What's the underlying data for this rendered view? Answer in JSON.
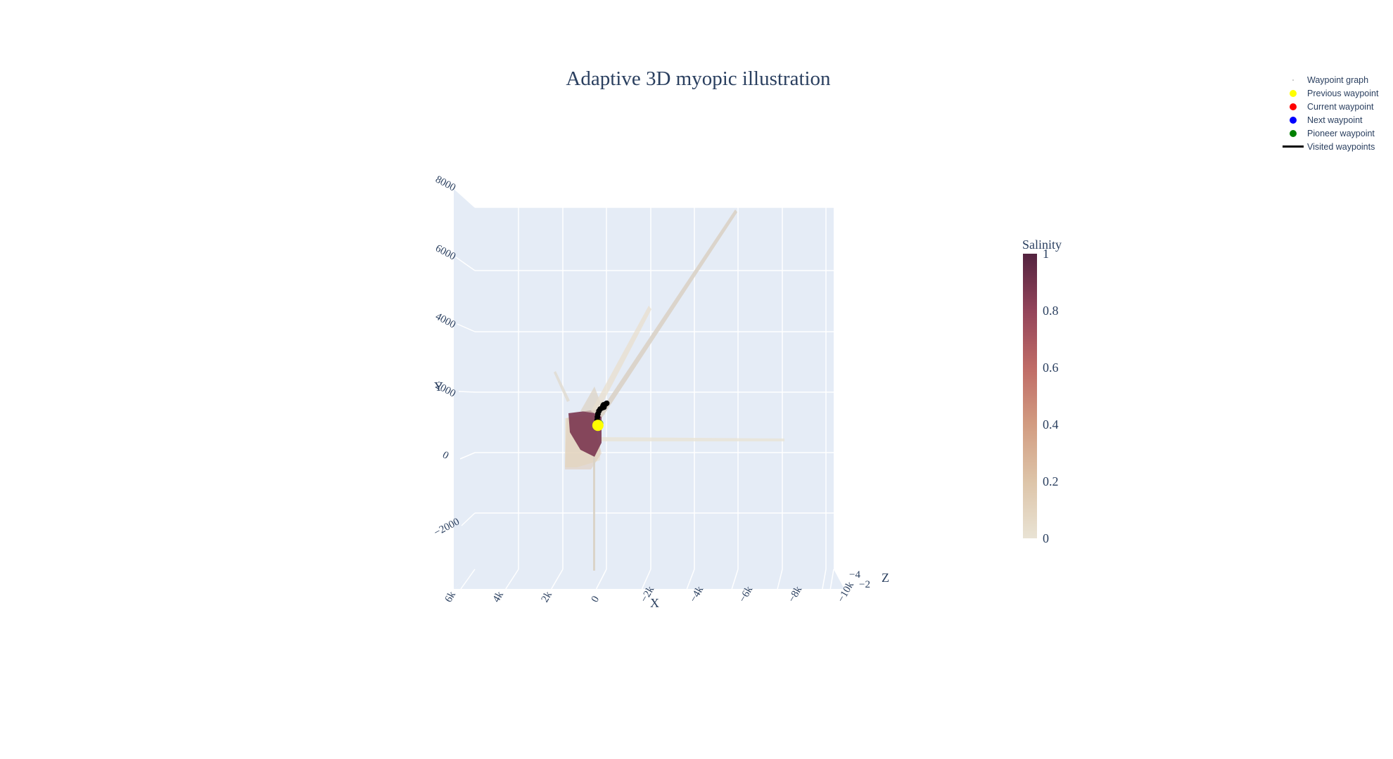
{
  "chart_data": {
    "type": "scatter3d",
    "title": "Adaptive 3D myopic illustration",
    "axes": {
      "x": {
        "title": "X",
        "ticks": [
          "6k",
          "4k",
          "2k",
          "0",
          "−2k",
          "−4k",
          "−6k",
          "−8k",
          "−10k"
        ]
      },
      "y": {
        "title": "Y",
        "ticks": [
          "8000",
          "6000",
          "4000",
          "2000",
          "0",
          "−2000"
        ]
      },
      "z": {
        "title": "Z",
        "ticks": [
          "−4",
          "−2"
        ]
      }
    },
    "colorbar": {
      "title": "Salinity",
      "ticks": [
        "1",
        "0.8",
        "0.6",
        "0.4",
        "0.2",
        "0"
      ],
      "colorscale": [
        "#e9e3d4",
        "#ddc4a8",
        "#d29c81",
        "#bf6b66",
        "#93445a",
        "#53233f"
      ]
    },
    "legend": [
      {
        "name": "Waypoint graph",
        "kind": "dot-small",
        "color": "#bdbdbd"
      },
      {
        "name": "Previous waypoint",
        "kind": "dot",
        "color": "#ffff00"
      },
      {
        "name": "Current waypoint",
        "kind": "dot",
        "color": "#ff0000"
      },
      {
        "name": "Next waypoint",
        "kind": "dot",
        "color": "#0000ff"
      },
      {
        "name": "Pioneer waypoint",
        "kind": "dot",
        "color": "#008000"
      },
      {
        "name": "Visited waypoints",
        "kind": "line",
        "color": "#000000"
      }
    ],
    "visited_waypoints": [
      [
        -50,
        1380
      ],
      [
        -10,
        1360
      ],
      [
        80,
        1330
      ],
      [
        100,
        1300
      ],
      [
        60,
        1260
      ],
      [
        130,
        1240
      ],
      [
        210,
        1200
      ],
      [
        260,
        1140
      ],
      [
        300,
        1050
      ],
      [
        320,
        960
      ],
      [
        330,
        870
      ],
      [
        320,
        780
      ],
      [
        300,
        700
      ]
    ],
    "previous_waypoint": [
      300,
      700
    ],
    "pioneer_waypoint": [
      220,
      760
    ]
  }
}
